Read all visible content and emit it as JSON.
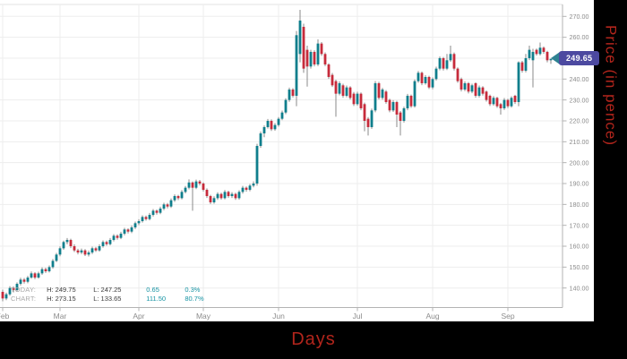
{
  "axes": {
    "x_title": "Days",
    "y_title": "Price (in pence)"
  },
  "price_tag": {
    "value": "249.65",
    "body_color": "#4c49a0",
    "arrow_color": "#2f8292"
  },
  "legend": {
    "rows": [
      {
        "label": "TODAY:",
        "high": "H: 249.75",
        "low": "L: 247.25",
        "change": "0.65",
        "change_pct": "0.3%"
      },
      {
        "label": "CHART:",
        "high": "H: 273.15",
        "low": "L: 133.65",
        "change": "111.50",
        "change_pct": "80.7%"
      }
    ]
  },
  "chart_data": {
    "type": "candlestick",
    "title": "",
    "xlabel": "Days",
    "ylabel": "Price (in pence)",
    "x_unit": "trading-day",
    "grid": true,
    "legend_position": "bottom-left",
    "ylim": [
      133,
      275
    ],
    "y_ticks": [
      140,
      150,
      160,
      170,
      180,
      190,
      200,
      210,
      220,
      230,
      240,
      250,
      260,
      270
    ],
    "y_tick_format": "0.00",
    "month_labels": [
      "Feb",
      "Mar",
      "Apr",
      "May",
      "Jun",
      "Jul",
      "Aug",
      "Sep"
    ],
    "month_start_index": [
      0,
      16,
      38,
      56,
      77,
      99,
      120,
      141
    ],
    "last_price": 249.65,
    "today_high": 249.75,
    "today_low": 247.25,
    "today_change": 0.65,
    "today_change_pct": "0.3%",
    "chart_high": 273.15,
    "chart_low": 133.65,
    "chart_change": 111.5,
    "chart_change_pct": "80.7%",
    "colors": {
      "up": "#0f7e8c",
      "down": "#c62b3b",
      "wick": "#7e7e7e",
      "grid": "#ededed",
      "axis": "#b3b3b3",
      "tick_text": "#8c8c8c"
    },
    "ohlc": [
      [
        138.15,
        139.2,
        133.65,
        135.0
      ],
      [
        135.0,
        137.8,
        134.2,
        137.0
      ],
      [
        137.0,
        140.9,
        136.3,
        140.0
      ],
      [
        140.0,
        140.8,
        137.9,
        139.0
      ],
      [
        139.0,
        142.7,
        138.4,
        142.0
      ],
      [
        142.0,
        144.9,
        141.2,
        144.0
      ],
      [
        144.0,
        144.8,
        142.1,
        143.0
      ],
      [
        143.0,
        145.8,
        142.3,
        145.0
      ],
      [
        145.0,
        147.9,
        144.4,
        147.0
      ],
      [
        147.0,
        147.6,
        144.2,
        145.0
      ],
      [
        145.0,
        147.8,
        144.5,
        147.0
      ],
      [
        147.0,
        149.9,
        146.3,
        149.0
      ],
      [
        149.0,
        149.7,
        147.2,
        148.0
      ],
      [
        148.0,
        150.8,
        147.4,
        150.0
      ],
      [
        150.0,
        153.9,
        149.3,
        153.0
      ],
      [
        153.0,
        156.8,
        152.4,
        156.0
      ],
      [
        156.0,
        159.9,
        155.2,
        159.0
      ],
      [
        159.0,
        162.7,
        158.3,
        162.0
      ],
      [
        162.0,
        163.9,
        160.9,
        163.0
      ],
      [
        163.0,
        163.6,
        159.1,
        160.0
      ],
      [
        160.0,
        160.9,
        157.2,
        158.0
      ],
      [
        158.0,
        158.8,
        156.1,
        157.0
      ],
      [
        157.0,
        158.9,
        156.2,
        158.0
      ],
      [
        158.0,
        158.6,
        155.3,
        156.0
      ],
      [
        156.0,
        157.9,
        155.1,
        157.0
      ],
      [
        157.0,
        159.8,
        156.2,
        159.0
      ],
      [
        159.0,
        159.7,
        157.3,
        158.0
      ],
      [
        158.0,
        160.9,
        157.4,
        160.0
      ],
      [
        160.0,
        162.8,
        159.3,
        162.0
      ],
      [
        162.0,
        162.7,
        160.2,
        161.0
      ],
      [
        161.0,
        163.9,
        160.4,
        163.0
      ],
      [
        163.0,
        165.8,
        162.3,
        165.0
      ],
      [
        165.0,
        165.7,
        163.1,
        164.0
      ],
      [
        164.0,
        166.9,
        163.4,
        166.0
      ],
      [
        166.0,
        168.8,
        165.2,
        168.0
      ],
      [
        168.0,
        168.6,
        166.1,
        167.0
      ],
      [
        167.0,
        169.9,
        166.3,
        169.0
      ],
      [
        169.0,
        171.8,
        168.2,
        171.0
      ],
      [
        171.0,
        172.9,
        170.1,
        172.0
      ],
      [
        172.0,
        174.8,
        171.3,
        174.0
      ],
      [
        174.0,
        174.7,
        172.2,
        173.0
      ],
      [
        173.0,
        175.9,
        172.4,
        175.0
      ],
      [
        175.0,
        177.8,
        174.2,
        177.0
      ],
      [
        177.0,
        177.6,
        175.1,
        176.0
      ],
      [
        176.0,
        178.9,
        175.3,
        178.0
      ],
      [
        178.0,
        180.8,
        177.2,
        180.0
      ],
      [
        180.0,
        180.7,
        178.1,
        179.0
      ],
      [
        179.0,
        182.9,
        178.3,
        182.0
      ],
      [
        182.0,
        184.8,
        181.2,
        184.0
      ],
      [
        184.0,
        184.6,
        182.1,
        183.0
      ],
      [
        183.0,
        186.9,
        182.4,
        186.0
      ],
      [
        186.0,
        188.8,
        185.3,
        188.0
      ],
      [
        188.0,
        192.0,
        187.2,
        190.5
      ],
      [
        190.5,
        191.0,
        177.0,
        188.0
      ],
      [
        188.0,
        191.9,
        187.3,
        191.0
      ],
      [
        191.0,
        191.7,
        189.1,
        190.0
      ],
      [
        190.0,
        190.6,
        186.2,
        187.0
      ],
      [
        187.0,
        187.7,
        183.1,
        184.0
      ],
      [
        184.0,
        184.6,
        180.2,
        181.0
      ],
      [
        181.0,
        183.9,
        180.3,
        183.0
      ],
      [
        183.0,
        185.8,
        182.2,
        185.0
      ],
      [
        185.0,
        185.6,
        182.3,
        183.0
      ],
      [
        183.0,
        186.9,
        182.4,
        186.0
      ],
      [
        186.0,
        186.6,
        183.2,
        184.0
      ],
      [
        184.0,
        185.9,
        183.1,
        185.0
      ],
      [
        185.0,
        185.6,
        182.2,
        183.0
      ],
      [
        183.0,
        186.8,
        182.3,
        186.0
      ],
      [
        186.0,
        188.9,
        185.2,
        188.0
      ],
      [
        188.0,
        188.6,
        186.1,
        187.0
      ],
      [
        187.0,
        189.8,
        186.3,
        189.0
      ],
      [
        189.0,
        191.0,
        188.2,
        190.0
      ],
      [
        190.0,
        209.0,
        189.0,
        208.0
      ],
      [
        208.0,
        214.9,
        207.1,
        214.0
      ],
      [
        214.0,
        217.8,
        212.2,
        217.0
      ],
      [
        217.0,
        220.9,
        216.3,
        220.0
      ],
      [
        220.0,
        220.7,
        215.2,
        216.0
      ],
      [
        216.0,
        218.9,
        215.3,
        218.0
      ],
      [
        218.0,
        221.8,
        217.2,
        221.0
      ],
      [
        221.0,
        224.9,
        220.3,
        224.0
      ],
      [
        224.0,
        230.8,
        223.2,
        230.0
      ],
      [
        230.0,
        235.9,
        229.1,
        235.0
      ],
      [
        235.0,
        235.7,
        231.2,
        232.0
      ],
      [
        232.0,
        263.0,
        227.0,
        261.0
      ],
      [
        252.0,
        273.15,
        248.0,
        268.0
      ],
      [
        265.0,
        266.5,
        243.0,
        245.0
      ],
      [
        254.0,
        256.0,
        236.4,
        246.0
      ],
      [
        246.0,
        254.0,
        245.0,
        253.0
      ],
      [
        253.0,
        253.8,
        246.1,
        247.0
      ],
      [
        247.0,
        259.0,
        246.2,
        257.0
      ],
      [
        257.0,
        257.7,
        251.1,
        252.0
      ],
      [
        252.0,
        252.8,
        246.2,
        247.0
      ],
      [
        247.0,
        247.6,
        240.1,
        241.0
      ],
      [
        242.0,
        242.9,
        236.2,
        237.0
      ],
      [
        239.0,
        239.7,
        222.0,
        233.0
      ],
      [
        233.0,
        238.9,
        232.2,
        238.0
      ],
      [
        237.0,
        237.8,
        231.1,
        232.0
      ],
      [
        232.0,
        236.9,
        231.3,
        236.0
      ],
      [
        236.0,
        236.6,
        230.2,
        231.0
      ],
      [
        233.0,
        233.8,
        227.1,
        228.0
      ],
      [
        228.0,
        233.9,
        227.2,
        233.0
      ],
      [
        233.0,
        233.6,
        225.1,
        226.0
      ],
      [
        228.0,
        228.7,
        215.0,
        220.0
      ],
      [
        221.0,
        221.8,
        213.0,
        217.0
      ],
      [
        217.0,
        225.9,
        216.2,
        225.0
      ],
      [
        225.0,
        239.0,
        224.1,
        238.0
      ],
      [
        238.0,
        238.7,
        230.2,
        231.0
      ],
      [
        231.0,
        235.8,
        230.1,
        235.0
      ],
      [
        234.0,
        234.7,
        228.2,
        229.0
      ],
      [
        230.0,
        230.6,
        224.1,
        225.0
      ],
      [
        225.0,
        229.9,
        224.3,
        229.0
      ],
      [
        229.0,
        229.6,
        217.0,
        223.0
      ],
      [
        224.0,
        224.7,
        213.0,
        220.0
      ],
      [
        220.0,
        226.8,
        219.2,
        226.0
      ],
      [
        226.0,
        232.9,
        225.1,
        232.0
      ],
      [
        232.0,
        232.6,
        226.2,
        227.0
      ],
      [
        227.0,
        239.8,
        226.3,
        239.0
      ],
      [
        239.0,
        243.9,
        238.2,
        243.0
      ],
      [
        243.0,
        243.6,
        237.1,
        238.0
      ],
      [
        238.0,
        241.9,
        237.3,
        241.0
      ],
      [
        241.0,
        241.6,
        235.2,
        236.0
      ],
      [
        236.0,
        240.8,
        235.1,
        240.0
      ],
      [
        240.0,
        245.9,
        239.3,
        245.0
      ],
      [
        245.0,
        250.8,
        244.2,
        250.0
      ],
      [
        250.0,
        250.6,
        244.1,
        245.0
      ],
      [
        245.0,
        252.0,
        244.3,
        249.0
      ],
      [
        249.0,
        256.0,
        248.2,
        252.0
      ],
      [
        252.0,
        252.7,
        244.1,
        245.0
      ],
      [
        245.0,
        245.6,
        238.2,
        239.0
      ],
      [
        240.0,
        240.7,
        234.1,
        235.0
      ],
      [
        235.0,
        238.9,
        234.2,
        238.0
      ],
      [
        238.0,
        238.6,
        233.1,
        234.0
      ],
      [
        234.0,
        237.8,
        233.2,
        237.0
      ],
      [
        238.0,
        238.5,
        231.1,
        232.0
      ],
      [
        232.0,
        236.9,
        231.2,
        236.0
      ],
      [
        236.0,
        236.6,
        232.1,
        233.0
      ],
      [
        234.0,
        234.5,
        229.2,
        230.0
      ],
      [
        232.0,
        232.6,
        227.1,
        228.0
      ],
      [
        228.0,
        231.9,
        227.3,
        231.0
      ],
      [
        231.0,
        231.5,
        226.2,
        227.0
      ],
      [
        228.0,
        228.6,
        223.0,
        226.0
      ],
      [
        226.0,
        230.9,
        225.2,
        230.0
      ],
      [
        230.0,
        230.6,
        226.1,
        227.0
      ],
      [
        227.0,
        231.8,
        226.3,
        231.0
      ],
      [
        232.0,
        232.5,
        228.1,
        229.0
      ],
      [
        229.0,
        248.5,
        227.0,
        248.0
      ],
      [
        248.0,
        248.7,
        243.1,
        244.0
      ],
      [
        244.0,
        252.0,
        243.2,
        250.0
      ],
      [
        250.0,
        256.0,
        249.1,
        254.0
      ],
      [
        249.0,
        254.5,
        236.0,
        253.0
      ],
      [
        254.0,
        254.6,
        251.2,
        252.0
      ],
      [
        252.0,
        257.5,
        251.3,
        255.0
      ],
      [
        255.0,
        255.6,
        252.1,
        253.0
      ],
      [
        253.0,
        253.5,
        248.0,
        249.0
      ],
      [
        249.0,
        249.75,
        247.25,
        249.65
      ]
    ]
  }
}
